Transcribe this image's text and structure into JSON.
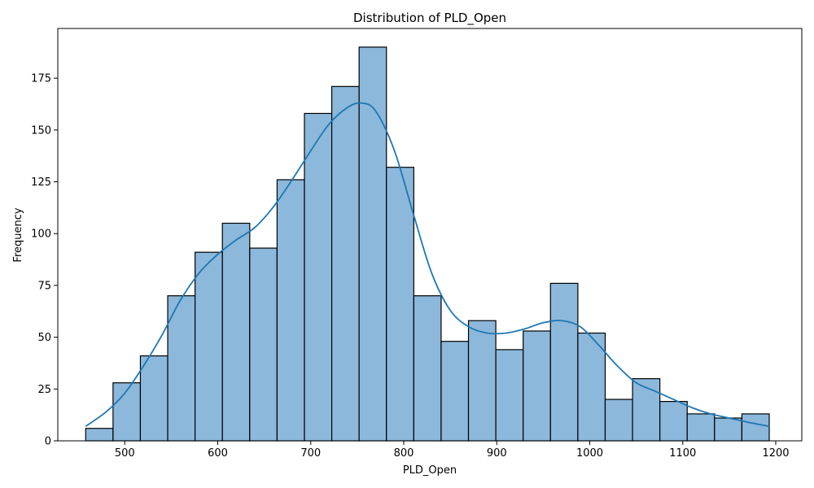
{
  "chart_data": {
    "type": "bar",
    "title": "Distribution of PLD_Open",
    "xlabel": "PLD_Open",
    "ylabel": "Frequency",
    "xlim": [
      428,
      1228
    ],
    "ylim": [
      0,
      199
    ],
    "x_ticks": [
      500,
      600,
      700,
      800,
      900,
      1000,
      1100,
      1200
    ],
    "y_ticks": [
      0,
      25,
      50,
      75,
      100,
      125,
      150,
      175
    ],
    "bin_edges": [
      458,
      487.4,
      516.8,
      546.2,
      575.6,
      605,
      634.4,
      663.8,
      693.2,
      722.6,
      752,
      781.4,
      810.8,
      840.2,
      869.6,
      899,
      928.4,
      957.8,
      987.2,
      1016.6,
      1046,
      1075.4,
      1104.8,
      1134.2,
      1163.6,
      1193
    ],
    "values": [
      6,
      28,
      41,
      70,
      91,
      105,
      93,
      126,
      158,
      171,
      190,
      132,
      70,
      48,
      58,
      44,
      53,
      76,
      52,
      20,
      30,
      19,
      13,
      11,
      13
    ],
    "kde": {
      "x": [
        458,
        480,
        500,
        520,
        540,
        560,
        580,
        600,
        620,
        640,
        660,
        680,
        700,
        720,
        740,
        755,
        770,
        790,
        810,
        830,
        850,
        870,
        890,
        910,
        930,
        950,
        970,
        990,
        1010,
        1030,
        1050,
        1070,
        1090,
        1110,
        1130,
        1150,
        1170,
        1193
      ],
      "y": [
        7,
        14,
        23,
        36,
        51,
        68,
        81,
        90,
        97,
        103,
        113,
        126,
        140,
        153,
        161,
        163,
        159,
        140,
        110,
        81,
        63,
        55,
        52,
        52,
        54,
        57,
        58,
        55,
        46,
        36,
        28,
        24,
        20,
        16,
        13,
        11,
        9,
        7
      ]
    },
    "colors": {
      "bar_fill": "#8cb8db",
      "bar_edge": "#000000",
      "kde_line": "#1f77b4"
    },
    "grid": false,
    "legend": "none"
  }
}
